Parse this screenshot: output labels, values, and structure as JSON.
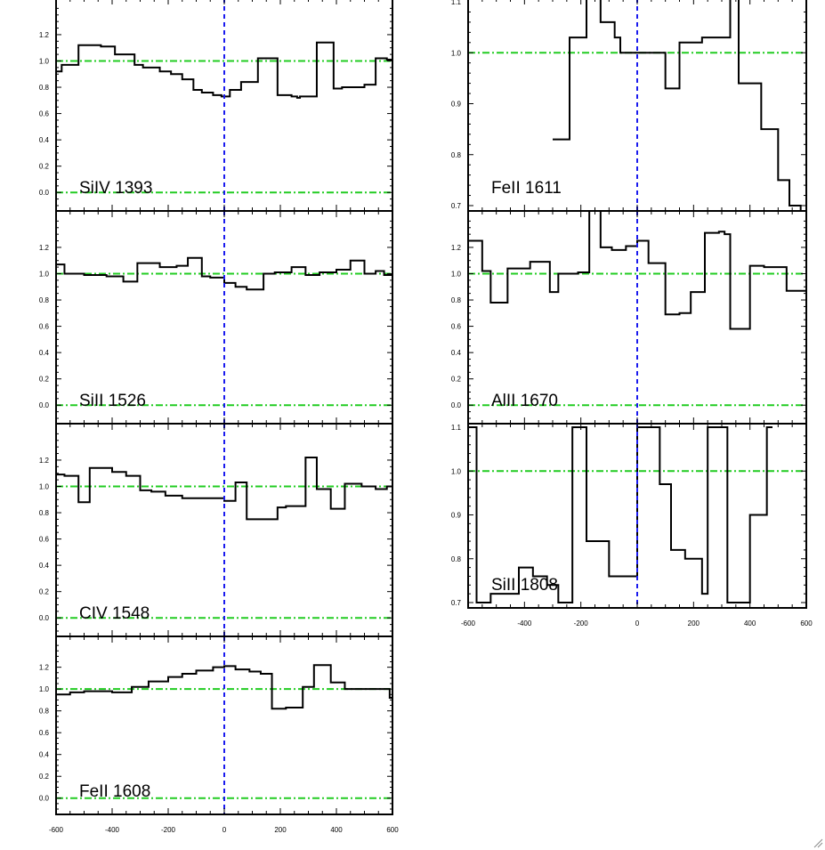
{
  "chart_data": [
    {
      "type": "line",
      "label": "SiIV 1393",
      "x": [
        -600,
        -580,
        -520,
        -440,
        -390,
        -320,
        -290,
        -230,
        -190,
        -150,
        -110,
        -80,
        -40,
        -10,
        20,
        60,
        110,
        120,
        180,
        190,
        240,
        260,
        270,
        330,
        390,
        420,
        450,
        500,
        520,
        540,
        580,
        600
      ],
      "y": [
        0.92,
        0.97,
        1.12,
        1.11,
        1.05,
        0.97,
        0.95,
        0.92,
        0.9,
        0.86,
        0.78,
        0.76,
        0.74,
        0.73,
        0.78,
        0.84,
        0.84,
        1.02,
        1.02,
        0.74,
        0.73,
        0.72,
        0.73,
        1.14,
        0.79,
        0.8,
        0.8,
        0.82,
        0.82,
        1.02,
        1.01,
        1.0
      ],
      "ylim": [
        -0.1,
        1.45
      ],
      "yticks": [
        0.0,
        0.2,
        0.4,
        0.6,
        0.8,
        1.0,
        1.2
      ],
      "ytick_labels": [
        "0.0",
        "0.2",
        "0.4",
        "0.6",
        "0.8",
        "1.0",
        "1.2"
      ],
      "xlim": [
        -600,
        600
      ],
      "xticks": [],
      "reference_lines": {
        "continuum": 1.0,
        "zero": 0.0,
        "velocity_zero": 0
      }
    },
    {
      "type": "line",
      "label": "SiII 1526",
      "x": [
        -600,
        -570,
        -500,
        -420,
        -360,
        -310,
        -230,
        -170,
        -130,
        -80,
        -50,
        0,
        40,
        80,
        140,
        180,
        240,
        290,
        340,
        400,
        450,
        500,
        540,
        570,
        600
      ],
      "y": [
        1.07,
        1.0,
        0.99,
        0.98,
        0.94,
        1.08,
        1.05,
        1.06,
        1.12,
        0.98,
        0.97,
        0.93,
        0.9,
        0.88,
        1.0,
        1.01,
        1.05,
        0.99,
        1.01,
        1.03,
        1.1,
        1.0,
        1.02,
        0.99,
        0.99
      ],
      "ylim": [
        -0.1,
        1.45
      ],
      "yticks": [
        0.0,
        0.2,
        0.4,
        0.6,
        0.8,
        1.0,
        1.2
      ],
      "ytick_labels": [
        "0.0",
        "0.2",
        "0.4",
        "0.6",
        "0.8",
        "1.0",
        "1.2"
      ],
      "xlim": [
        -600,
        600
      ],
      "xticks": [],
      "reference_lines": {
        "continuum": 1.0,
        "zero": 0.0,
        "velocity_zero": 0
      }
    },
    {
      "type": "line",
      "label": "CIV 1548",
      "x": [
        -600,
        -570,
        -520,
        -480,
        -400,
        -350,
        -300,
        -260,
        -210,
        -150,
        -100,
        -50,
        0,
        40,
        80,
        140,
        190,
        220,
        290,
        330,
        380,
        430,
        490,
        540,
        580,
        600
      ],
      "y": [
        1.09,
        1.08,
        0.88,
        1.14,
        1.11,
        1.08,
        0.97,
        0.96,
        0.93,
        0.91,
        0.91,
        0.91,
        0.89,
        1.03,
        0.75,
        0.75,
        0.84,
        0.85,
        1.22,
        0.98,
        0.83,
        1.02,
        1.0,
        0.98,
        1.0,
        1.08
      ],
      "ylim": [
        -0.1,
        1.45
      ],
      "yticks": [
        0.0,
        0.2,
        0.4,
        0.6,
        0.8,
        1.0,
        1.2
      ],
      "ytick_labels": [
        "0.0",
        "0.2",
        "0.4",
        "0.6",
        "0.8",
        "1.0",
        "1.2"
      ],
      "xlim": [
        -600,
        600
      ],
      "xticks": [],
      "reference_lines": {
        "continuum": 1.0,
        "zero": 0.0,
        "velocity_zero": 0
      }
    },
    {
      "type": "line",
      "label": "FeII 1608",
      "x": [
        -600,
        -550,
        -500,
        -440,
        -400,
        -330,
        -270,
        -200,
        -150,
        -100,
        -40,
        0,
        40,
        90,
        130,
        170,
        220,
        280,
        320,
        380,
        430,
        480,
        540,
        590,
        600
      ],
      "y": [
        0.95,
        0.97,
        0.98,
        0.98,
        0.97,
        1.02,
        1.07,
        1.11,
        1.14,
        1.17,
        1.2,
        1.21,
        1.18,
        1.16,
        1.14,
        0.82,
        0.83,
        1.02,
        1.22,
        1.06,
        1.0,
        1.0,
        1.0,
        0.92,
        0.9
      ],
      "ylim": [
        -0.1,
        1.45
      ],
      "yticks": [
        0.0,
        0.2,
        0.4,
        0.6,
        0.8,
        1.0,
        1.2
      ],
      "ytick_labels": [
        "0.0",
        "0.2",
        "0.4",
        "0.6",
        "0.8",
        "1.0",
        "1.2"
      ],
      "xlim": [
        -600,
        600
      ],
      "xticks": [
        -600,
        -400,
        -200,
        0,
        200,
        400,
        600
      ],
      "xtick_labels": [
        "-600",
        "-400",
        "-200",
        "0",
        "200",
        "400",
        "600"
      ],
      "reference_lines": {
        "continuum": 1.0,
        "zero": 0.0,
        "velocity_zero": 0
      }
    },
    {
      "type": "line",
      "label": "FeII 1611",
      "x": [
        -300,
        -260,
        -240,
        -180,
        -130,
        -80,
        -60,
        0,
        60,
        100,
        150,
        230,
        330,
        360,
        420,
        440,
        500,
        540,
        580,
        600
      ],
      "y": [
        0.83,
        0.83,
        1.03,
        1.12,
        1.06,
        1.03,
        1.0,
        1.0,
        1.0,
        0.93,
        1.02,
        1.03,
        1.12,
        0.94,
        0.94,
        0.85,
        0.75,
        0.7,
        0.68,
        0.98
      ],
      "ylim": [
        0.7,
        1.1
      ],
      "yticks": [
        0.7,
        0.8,
        0.9,
        1.0,
        1.1
      ],
      "ytick_labels": [
        "0.7",
        "0.8",
        "0.9",
        "1.0",
        "1.1"
      ],
      "xlim": [
        -600,
        600
      ],
      "xticks": [],
      "reference_lines": {
        "continuum": 1.0,
        "velocity_zero": 0
      }
    },
    {
      "type": "line",
      "label": "AlII 1670",
      "x": [
        -600,
        -550,
        -520,
        -460,
        -380,
        -310,
        -280,
        -210,
        -170,
        -130,
        -90,
        -40,
        0,
        40,
        100,
        150,
        190,
        240,
        290,
        310,
        330,
        400,
        450,
        500,
        530,
        570,
        600
      ],
      "y": [
        1.25,
        1.02,
        0.78,
        1.04,
        1.09,
        0.86,
        1.0,
        1.01,
        1.5,
        1.2,
        1.18,
        1.21,
        1.25,
        1.08,
        0.69,
        0.7,
        0.86,
        1.31,
        1.32,
        1.3,
        0.58,
        1.06,
        1.05,
        1.05,
        0.87,
        0.87,
        1.19
      ],
      "ylim": [
        -0.1,
        1.45
      ],
      "yticks": [
        0.0,
        0.2,
        0.4,
        0.6,
        0.8,
        1.0,
        1.2
      ],
      "ytick_labels": [
        "0.0",
        "0.2",
        "0.4",
        "0.6",
        "0.8",
        "1.0",
        "1.2"
      ],
      "xlim": [
        -600,
        600
      ],
      "xticks": [],
      "reference_lines": {
        "continuum": 1.0,
        "zero": 0.0,
        "velocity_zero": 0
      }
    },
    {
      "type": "line",
      "label": "SiII 1808",
      "x": [
        -600,
        -570,
        -520,
        -460,
        -420,
        -370,
        -320,
        -280,
        -250,
        -230,
        -180,
        -130,
        -100,
        -30,
        0,
        30,
        80,
        120,
        170,
        230,
        250,
        290,
        320,
        360,
        400,
        440,
        460,
        480
      ],
      "y": [
        1.1,
        0.7,
        0.72,
        0.72,
        0.78,
        0.76,
        0.74,
        0.7,
        0.7,
        1.1,
        0.84,
        0.84,
        0.76,
        0.76,
        1.1,
        1.1,
        0.97,
        0.82,
        0.8,
        0.72,
        1.1,
        1.1,
        0.7,
        0.7,
        0.9,
        0.9,
        1.1,
        1.1
      ],
      "ylim": [
        0.7,
        1.1
      ],
      "yticks": [
        0.7,
        0.8,
        0.9,
        1.0,
        1.1
      ],
      "ytick_labels": [
        "0.7",
        "0.8",
        "0.9",
        "1.0",
        "1.1"
      ],
      "xlim": [
        -600,
        600
      ],
      "xticks": [
        -600,
        -400,
        -200,
        0,
        200,
        400,
        600
      ],
      "xtick_labels": [
        "-600",
        "-400",
        "-200",
        "0",
        "200",
        "400",
        "600"
      ],
      "reference_lines": {
        "continuum": 1.0,
        "velocity_zero": 0
      }
    }
  ],
  "colors": {
    "spectrum": "#000000",
    "continuum": "#22cc22",
    "velocity_zero": "#1a1aee",
    "axes": "#000000",
    "background": "#ffffff"
  },
  "icons": {
    "resize": "resize-grip-icon"
  }
}
